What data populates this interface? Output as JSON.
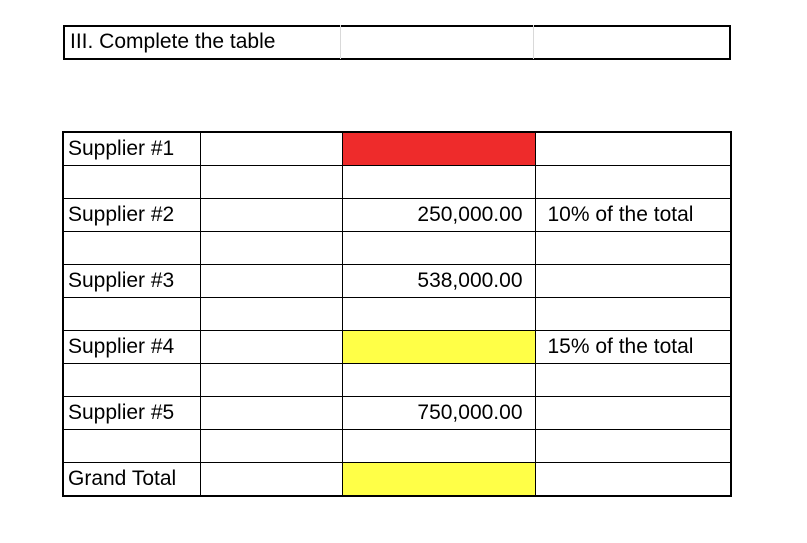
{
  "header": {
    "title": "III. Complete the table"
  },
  "table": {
    "rows": [
      {
        "label": "Supplier #1",
        "amount": "",
        "note": "",
        "highlight": "#ee2b2b"
      },
      {
        "label": "",
        "amount": "",
        "note": "",
        "highlight": ""
      },
      {
        "label": "Supplier #2",
        "amount": "250,000.00",
        "note": "10% of the total",
        "highlight": ""
      },
      {
        "label": "",
        "amount": "",
        "note": "",
        "highlight": ""
      },
      {
        "label": "Supplier #3",
        "amount": "538,000.00",
        "note": "",
        "highlight": ""
      },
      {
        "label": "",
        "amount": "",
        "note": "",
        "highlight": ""
      },
      {
        "label": "Supplier #4",
        "amount": "",
        "note": "15% of the total",
        "highlight": "#ffff47"
      },
      {
        "label": "",
        "amount": "",
        "note": "",
        "highlight": ""
      },
      {
        "label": "Supplier #5",
        "amount": "750,000.00",
        "note": "",
        "highlight": ""
      },
      {
        "label": "",
        "amount": "",
        "note": "",
        "highlight": ""
      },
      {
        "label": "Grand Total",
        "amount": "",
        "note": "",
        "highlight": "#ffff47"
      }
    ]
  }
}
